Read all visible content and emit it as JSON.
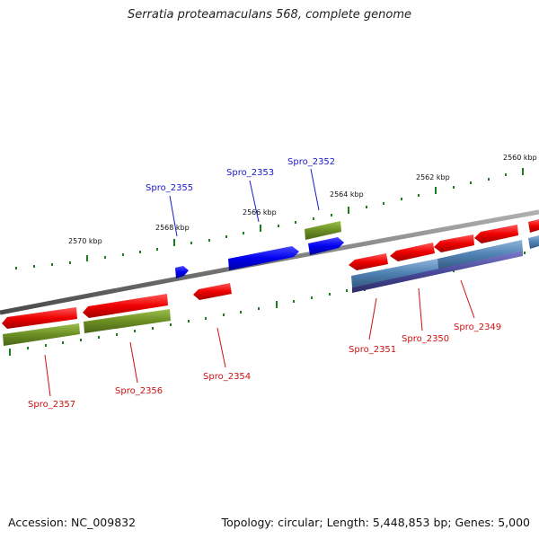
{
  "title": "Serratia proteamaculans 568, complete genome",
  "footer": {
    "accession": "Accession: NC_009832",
    "summary": "Topology: circular; Length: 5,448,853 bp; Genes: 5,000"
  },
  "colors": {
    "backbone": "#7a7a7a",
    "tick": "#1e7d1e",
    "cds": "#e60000",
    "gene_olive": "#6b8e23",
    "gene_blue": "#0000e6",
    "steel": "#4f81b3",
    "indigo": "#4a4a9a",
    "label_forward": "#1a1acc",
    "label_reverse": "#cc1111"
  },
  "tick_labels": [
    {
      "text": "2570 kbp"
    },
    {
      "text": "2568 kbp"
    },
    {
      "text": "2566 kbp"
    },
    {
      "text": "2564 kbp"
    },
    {
      "text": "2562 kbp"
    },
    {
      "text": "2560 kbp"
    }
  ],
  "genes": [
    {
      "name": "Spro_2355",
      "strand": "forward"
    },
    {
      "name": "Spro_2353",
      "strand": "forward"
    },
    {
      "name": "Spro_2352",
      "strand": "forward"
    },
    {
      "name": "Spro_2357",
      "strand": "reverse"
    },
    {
      "name": "Spro_2356",
      "strand": "reverse"
    },
    {
      "name": "Spro_2354",
      "strand": "reverse"
    },
    {
      "name": "Spro_2351",
      "strand": "reverse"
    },
    {
      "name": "Spro_2350",
      "strand": "reverse"
    },
    {
      "name": "Spro_2349",
      "strand": "reverse"
    }
  ]
}
